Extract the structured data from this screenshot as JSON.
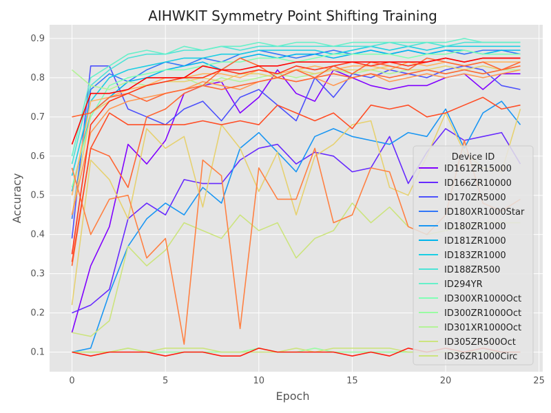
{
  "chart_data": {
    "type": "line",
    "title": "AIHWKIT Symmetry Point Shifting Training",
    "xlabel": "Epoch",
    "ylabel": "Accuracy",
    "xlim": [
      -1.2,
      25.2
    ],
    "ylim": [
      0.05,
      0.935
    ],
    "xticks": [
      0,
      5,
      10,
      15,
      20,
      25
    ],
    "yticks": [
      0.1,
      0.2,
      0.3,
      0.4,
      0.5,
      0.6,
      0.7,
      0.8,
      0.9
    ],
    "grid": true,
    "legend": {
      "title": "Device ID",
      "placement": "center-right"
    },
    "x": [
      0,
      1,
      2,
      3,
      4,
      5,
      6,
      7,
      8,
      9,
      10,
      11,
      12,
      13,
      14,
      15,
      16,
      17,
      18,
      19,
      20,
      21,
      22,
      23,
      24
    ],
    "series": [
      {
        "name": "ID161ZR15000",
        "color": "#8000ff",
        "values": [
          0.15,
          0.32,
          0.42,
          0.63,
          0.58,
          0.64,
          0.76,
          0.78,
          0.79,
          0.71,
          0.75,
          0.82,
          0.76,
          0.74,
          0.82,
          0.8,
          0.78,
          0.77,
          0.78,
          0.78,
          0.8,
          0.81,
          0.77,
          0.81,
          0.81
        ]
      },
      {
        "name": "ID166ZR10000",
        "color": "#6629fe",
        "values": [
          0.2,
          0.22,
          0.26,
          0.44,
          0.48,
          0.45,
          0.54,
          0.53,
          0.53,
          0.59,
          0.62,
          0.63,
          0.58,
          0.61,
          0.6,
          0.56,
          0.57,
          0.65,
          0.53,
          0.61,
          0.67,
          0.64,
          0.65,
          0.66,
          0.58
        ]
      },
      {
        "name": "ID170ZR5000",
        "color": "#4c50fc",
        "values": [
          0.39,
          0.83,
          0.83,
          0.72,
          0.7,
          0.68,
          0.72,
          0.74,
          0.69,
          0.75,
          0.77,
          0.73,
          0.69,
          0.8,
          0.75,
          0.81,
          0.8,
          0.82,
          0.81,
          0.8,
          0.82,
          0.83,
          0.82,
          0.78,
          0.77
        ]
      },
      {
        "name": "ID180XR1000Star",
        "color": "#3176f8",
        "values": [
          0.44,
          0.77,
          0.81,
          0.79,
          0.82,
          0.84,
          0.83,
          0.85,
          0.84,
          0.86,
          0.87,
          0.86,
          0.85,
          0.86,
          0.87,
          0.86,
          0.87,
          0.86,
          0.87,
          0.86,
          0.87,
          0.86,
          0.87,
          0.87,
          0.86
        ]
      },
      {
        "name": "ID180ZR1000",
        "color": "#1996f3",
        "values": [
          0.1,
          0.11,
          0.25,
          0.37,
          0.44,
          0.48,
          0.45,
          0.52,
          0.48,
          0.62,
          0.66,
          0.61,
          0.56,
          0.65,
          0.67,
          0.65,
          0.64,
          0.63,
          0.66,
          0.65,
          0.72,
          0.62,
          0.71,
          0.74,
          0.68
        ]
      },
      {
        "name": "ID181ZR1000",
        "color": "#00b5eb",
        "values": [
          0.51,
          0.71,
          0.75,
          0.79,
          0.8,
          0.82,
          0.83,
          0.84,
          0.82,
          0.85,
          0.86,
          0.85,
          0.86,
          0.86,
          0.85,
          0.86,
          0.87,
          0.86,
          0.87,
          0.86,
          0.87,
          0.87,
          0.86,
          0.87,
          0.87
        ]
      },
      {
        "name": "ID183ZR1000",
        "color": "#1acee3",
        "values": [
          0.55,
          0.74,
          0.8,
          0.82,
          0.83,
          0.84,
          0.85,
          0.85,
          0.86,
          0.86,
          0.87,
          0.87,
          0.87,
          0.87,
          0.86,
          0.87,
          0.88,
          0.87,
          0.88,
          0.87,
          0.88,
          0.88,
          0.88,
          0.88,
          0.88
        ]
      },
      {
        "name": "ID188ZR500",
        "color": "#4ce3d6",
        "values": [
          0.58,
          0.78,
          0.82,
          0.85,
          0.86,
          0.86,
          0.87,
          0.87,
          0.88,
          0.87,
          0.88,
          0.88,
          0.88,
          0.88,
          0.88,
          0.88,
          0.88,
          0.89,
          0.88,
          0.89,
          0.88,
          0.89,
          0.89,
          0.89,
          0.89
        ]
      },
      {
        "name": "ID294YR",
        "color": "#66f0c9",
        "values": [
          0.6,
          0.8,
          0.83,
          0.86,
          0.87,
          0.86,
          0.88,
          0.87,
          0.88,
          0.88,
          0.89,
          0.88,
          0.89,
          0.89,
          0.88,
          0.89,
          0.89,
          0.89,
          0.89,
          0.89,
          0.89,
          0.9,
          0.89,
          0.89,
          0.89
        ]
      },
      {
        "name": "ID300XR1000Oct",
        "color": "#80ffb4",
        "values": [
          0.52,
          0.7,
          0.78,
          0.8,
          0.81,
          0.82,
          0.82,
          0.83,
          0.84,
          0.84,
          0.85,
          0.85,
          0.84,
          0.85,
          0.86,
          0.86,
          0.86,
          0.86,
          0.85,
          0.86,
          0.86,
          0.87,
          0.86,
          0.86,
          0.86
        ]
      },
      {
        "name": "ID300ZR1000Oct",
        "color": "#99fca2",
        "values": [
          0.1,
          0.1,
          0.1,
          0.11,
          0.1,
          0.1,
          0.1,
          0.1,
          0.1,
          0.1,
          0.11,
          0.1,
          0.1,
          0.11,
          0.1,
          0.1,
          0.1,
          0.1,
          0.1,
          0.1,
          0.1,
          0.1,
          0.1,
          0.1,
          0.1
        ]
      },
      {
        "name": "ID301XR1000Oct",
        "color": "#b3f396",
        "values": [
          0.82,
          0.78,
          0.77,
          0.79,
          0.78,
          0.79,
          0.8,
          0.78,
          0.8,
          0.79,
          0.8,
          0.81,
          0.8,
          0.81,
          0.82,
          0.81,
          0.82,
          0.81,
          0.82,
          0.82,
          0.81,
          0.82,
          0.81,
          0.82,
          0.82
        ]
      },
      {
        "name": "ID305ZR500Oct",
        "color": "#cce47e",
        "values": [
          0.15,
          0.14,
          0.18,
          0.37,
          0.32,
          0.36,
          0.43,
          0.41,
          0.39,
          0.45,
          0.41,
          0.43,
          0.34,
          0.39,
          0.41,
          0.48,
          0.43,
          0.47,
          0.42,
          0.4,
          0.41,
          0.42,
          0.43,
          0.43,
          0.43
        ]
      },
      {
        "name": "ID36ZR1000Circ",
        "color": "#cce47e",
        "values": [
          0.1,
          0.1,
          0.1,
          0.11,
          0.1,
          0.11,
          0.11,
          0.11,
          0.1,
          0.1,
          0.1,
          0.1,
          0.11,
          0.1,
          0.11,
          0.11,
          0.11,
          0.11,
          0.1,
          0.1,
          0.1,
          0.1,
          0.1,
          0.1,
          0.1
        ]
      },
      {
        "name": "",
        "color": "#e6d170",
        "values": [
          0.22,
          0.59,
          0.54,
          0.44,
          0.67,
          0.62,
          0.65,
          0.47,
          0.68,
          0.62,
          0.51,
          0.61,
          0.45,
          0.6,
          0.63,
          0.68,
          0.69,
          0.52,
          0.5,
          0.6,
          0.71,
          0.61,
          0.57,
          0.56,
          0.72
        ]
      },
      {
        "name": "",
        "color": "#e6d170",
        "values": [
          0.45,
          0.71,
          0.74,
          0.76,
          0.78,
          0.79,
          0.79,
          0.8,
          0.79,
          0.81,
          0.81,
          0.8,
          0.82,
          0.81,
          0.82,
          0.82,
          0.82,
          0.83,
          0.82,
          0.82,
          0.83,
          0.82,
          0.83,
          0.82,
          0.83
        ]
      },
      {
        "name": "",
        "color": "#ffb360",
        "values": [
          0.5,
          0.74,
          0.75,
          0.77,
          0.78,
          0.8,
          0.8,
          0.81,
          0.81,
          0.8,
          0.82,
          0.81,
          0.82,
          0.83,
          0.82,
          0.83,
          0.83,
          0.82,
          0.84,
          0.83,
          0.84,
          0.83,
          0.84,
          0.84,
          0.84
        ]
      },
      {
        "name": "",
        "color": "#ff9852",
        "values": [
          0.45,
          0.66,
          0.72,
          0.74,
          0.75,
          0.76,
          0.77,
          0.79,
          0.78,
          0.77,
          0.79,
          0.8,
          0.79,
          0.8,
          0.78,
          0.8,
          0.81,
          0.79,
          0.8,
          0.81,
          0.8,
          0.81,
          0.8,
          0.81,
          0.82
        ]
      },
      {
        "name": "",
        "color": "#ff8042",
        "values": [
          0.57,
          0.4,
          0.49,
          0.5,
          0.34,
          0.39,
          0.12,
          0.59,
          0.55,
          0.16,
          0.57,
          0.49,
          0.49,
          0.62,
          0.43,
          0.45,
          0.57,
          0.56,
          0.42,
          0.4,
          0.45,
          0.64,
          0.48,
          0.46,
          0.49
        ]
      },
      {
        "name": "",
        "color": "#ff6633",
        "values": [
          0.32,
          0.62,
          0.6,
          0.52,
          0.7,
          0.72,
          0.76,
          0.78,
          0.82,
          0.85,
          0.83,
          0.8,
          0.82,
          0.8,
          0.83,
          0.81,
          0.84,
          0.83,
          0.82,
          0.85,
          0.84,
          0.83,
          0.84,
          0.82,
          0.84
        ]
      },
      {
        "name": "",
        "color": "#ff6633",
        "values": [
          0.7,
          0.71,
          0.75,
          0.76,
          0.74,
          0.76,
          0.77,
          0.78,
          0.77,
          0.78,
          0.79,
          0.8,
          0.79,
          0.8,
          0.81,
          0.8,
          0.81,
          0.8,
          0.81,
          0.82,
          0.81,
          0.82,
          0.81,
          0.82,
          0.83
        ]
      },
      {
        "name": "",
        "color": "#ff4d25",
        "values": [
          0.33,
          0.62,
          0.71,
          0.68,
          0.68,
          0.68,
          0.68,
          0.69,
          0.68,
          0.69,
          0.68,
          0.73,
          0.71,
          0.69,
          0.71,
          0.67,
          0.73,
          0.72,
          0.73,
          0.7,
          0.71,
          0.73,
          0.75,
          0.72,
          0.73
        ]
      },
      {
        "name": "",
        "color": "#ff3318",
        "values": [
          0.35,
          0.68,
          0.74,
          0.76,
          0.78,
          0.79,
          0.8,
          0.8,
          0.82,
          0.81,
          0.82,
          0.81,
          0.83,
          0.82,
          0.83,
          0.84,
          0.83,
          0.84,
          0.83,
          0.84,
          0.85,
          0.84,
          0.85,
          0.85,
          0.85
        ]
      },
      {
        "name": "",
        "color": "#ff1a0c",
        "values": [
          0.1,
          0.09,
          0.1,
          0.1,
          0.1,
          0.09,
          0.1,
          0.1,
          0.09,
          0.09,
          0.11,
          0.1,
          0.1,
          0.1,
          0.1,
          0.09,
          0.1,
          0.09,
          0.11,
          0.1,
          0.11,
          0.1,
          0.11,
          0.1,
          0.1
        ]
      },
      {
        "name": "",
        "color": "#ff0000",
        "values": [
          0.63,
          0.76,
          0.76,
          0.77,
          0.8,
          0.8,
          0.8,
          0.83,
          0.82,
          0.82,
          0.83,
          0.83,
          0.84,
          0.84,
          0.84,
          0.84,
          0.84,
          0.84,
          0.84,
          0.84,
          0.85,
          0.84,
          0.85,
          0.85,
          0.85
        ]
      }
    ]
  }
}
